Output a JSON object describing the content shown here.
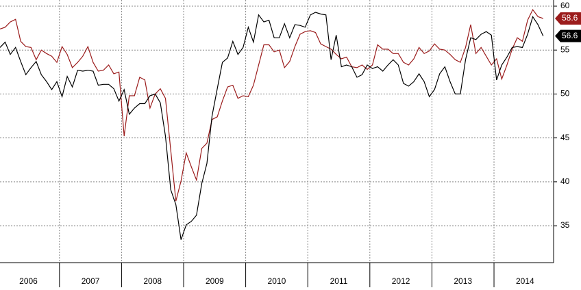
{
  "chart_data": {
    "type": "line",
    "x": [
      2006.042,
      2006.125,
      2006.208,
      2006.292,
      2006.375,
      2006.458,
      2006.542,
      2006.625,
      2006.708,
      2006.792,
      2006.875,
      2006.958,
      2007.042,
      2007.125,
      2007.208,
      2007.292,
      2007.375,
      2007.458,
      2007.542,
      2007.625,
      2007.708,
      2007.792,
      2007.875,
      2007.958,
      2008.042,
      2008.125,
      2008.208,
      2008.292,
      2008.375,
      2008.458,
      2008.542,
      2008.625,
      2008.708,
      2008.792,
      2008.875,
      2008.958,
      2009.042,
      2009.125,
      2009.208,
      2009.292,
      2009.375,
      2009.458,
      2009.542,
      2009.625,
      2009.708,
      2009.792,
      2009.875,
      2009.958,
      2010.042,
      2010.125,
      2010.208,
      2010.292,
      2010.375,
      2010.458,
      2010.542,
      2010.625,
      2010.708,
      2010.792,
      2010.875,
      2010.958,
      2011.042,
      2011.125,
      2011.208,
      2011.292,
      2011.375,
      2011.458,
      2011.542,
      2011.625,
      2011.708,
      2011.792,
      2011.875,
      2011.958,
      2012.042,
      2012.125,
      2012.208,
      2012.292,
      2012.375,
      2012.458,
      2012.542,
      2012.625,
      2012.708,
      2012.792,
      2012.875,
      2012.958,
      2013.042,
      2013.125,
      2013.208,
      2013.292,
      2013.375,
      2013.458,
      2013.542,
      2013.625,
      2013.708,
      2013.792,
      2013.875,
      2013.958,
      2014.042,
      2014.125,
      2014.208,
      2014.292,
      2014.375,
      2014.458,
      2014.542,
      2014.625,
      2014.708,
      2014.792
    ],
    "series": [
      {
        "color": "#000000",
        "values": [
          55.3,
          55.9,
          54.5,
          55.3,
          53.7,
          52.2,
          53,
          53.7,
          52.2,
          51.4,
          50.5,
          51.4,
          49.7,
          52,
          50.8,
          52.7,
          52.6,
          52.7,
          52.6,
          51,
          51.1,
          51.1,
          50.6,
          49.2,
          50.5,
          47.7,
          48.4,
          48.9,
          48.9,
          49.8,
          50,
          49,
          45.2,
          39.1,
          37.4,
          33.4,
          35.1,
          35.5,
          36.2,
          39.8,
          42.1,
          47.5,
          50.6,
          53.6,
          54.1,
          56,
          54.5,
          55.3,
          57.6,
          55.9,
          59,
          58.2,
          58.4,
          56.4,
          56.4,
          58,
          56.4,
          57.9,
          57.8,
          57.6,
          59,
          59.3,
          59.1,
          59,
          53.9,
          56.7,
          53.1,
          53.3,
          53.1,
          51.9,
          52.2,
          53.3,
          52.9,
          53.1,
          52.6,
          53.3,
          53.9,
          53.3,
          51.2,
          50.9,
          51.4,
          52.3,
          51.4,
          49.7,
          50.5,
          52.3,
          53.1,
          51.4,
          50,
          50,
          53.9,
          56.4,
          56.2,
          56.8,
          57.1,
          56.7,
          51.6,
          53.3,
          54.2,
          55.3,
          55.4,
          55.3,
          56.8,
          58.8,
          57.9,
          56.6
        ]
      },
      {
        "color": "#9b1c1c",
        "values": [
          57.4,
          57.6,
          58.2,
          58.5,
          56,
          55.4,
          55.3,
          53.9,
          55,
          54.6,
          54.3,
          53.6,
          55.4,
          54.5,
          53,
          53.6,
          54.3,
          55.4,
          53.6,
          52.6,
          52.7,
          53.3,
          52.3,
          52.5,
          45.2,
          49.8,
          49.8,
          51.9,
          51.6,
          48.4,
          50,
          50.6,
          49.5,
          43.6,
          37.8,
          40.1,
          43.3,
          41.7,
          40.2,
          43.8,
          44.4,
          47.1,
          47.4,
          49.2,
          50.8,
          51,
          49.5,
          49.8,
          49.7,
          51,
          53.3,
          55.6,
          55.6,
          54.8,
          55,
          53,
          53.7,
          55.4,
          56.8,
          57.1,
          57.2,
          57,
          55.7,
          55.4,
          55.1,
          54.5,
          54,
          54.2,
          53.1,
          53,
          53.3,
          52.8,
          53.3,
          55.6,
          55.1,
          55.1,
          54.6,
          54.6,
          53.6,
          53.3,
          54,
          55.3,
          54.6,
          54.9,
          55.7,
          55.1,
          55,
          54.5,
          53.9,
          53.6,
          55.3,
          57.9,
          54.6,
          55.3,
          54.3,
          53.3,
          54,
          51.7,
          53.3,
          55.1,
          56.4,
          56,
          58.4,
          59.6,
          58.8,
          58.6
        ]
      }
    ],
    "xlim": [
      2006.042,
      2014.96
    ],
    "xticks": [
      2007,
      2008,
      2009,
      2010,
      2011,
      2012,
      2013,
      2014
    ],
    "xlabels": [
      {
        "value": 2006.5,
        "label": "2006"
      },
      {
        "value": 2007.5,
        "label": "2007"
      },
      {
        "value": 2008.5,
        "label": "2008"
      },
      {
        "value": 2009.5,
        "label": "2009"
      },
      {
        "value": 2010.5,
        "label": "2010"
      },
      {
        "value": 2011.5,
        "label": "2011"
      },
      {
        "value": 2012.5,
        "label": "2012"
      },
      {
        "value": 2013.5,
        "label": "2013"
      },
      {
        "value": 2014.5,
        "label": "2014"
      }
    ],
    "ylim": [
      30.8,
      60.7
    ],
    "yticks": [
      35,
      40,
      45,
      50,
      55,
      60
    ],
    "grid": true
  }
}
